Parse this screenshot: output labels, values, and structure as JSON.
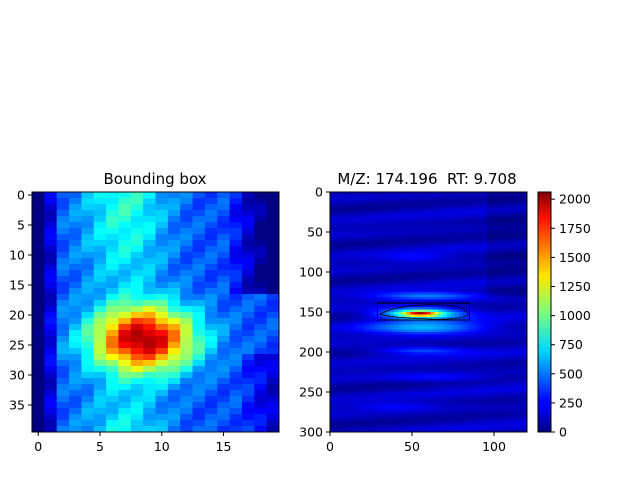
{
  "chart_data": [
    {
      "type": "heatmap",
      "title": "Bounding box",
      "colormap": "jet",
      "xlim": [
        -0.5,
        19.5
      ],
      "ylim": [
        39.5,
        -0.5
      ],
      "x_ticks": [
        "0",
        "5",
        "10",
        "15"
      ],
      "y_ticks": [
        "0",
        "5",
        "10",
        "15",
        "20",
        "25",
        "30",
        "35"
      ],
      "peak": {
        "x": 8.5,
        "y": 24
      },
      "colorbar": false
    },
    {
      "type": "heatmap",
      "title": "M/Z: 174.196  RT: 9.708",
      "colormap": "jet",
      "xlim": [
        0,
        120
      ],
      "ylim": [
        300,
        0
      ],
      "x_ticks": [
        "0",
        "50",
        "100"
      ],
      "y_ticks": [
        "0",
        "50",
        "100",
        "150",
        "200",
        "250",
        "300"
      ],
      "peak": {
        "x": 55,
        "y": 152,
        "value": 2050
      },
      "bounding_box": {
        "x": [
          29,
          85
        ],
        "y": [
          140,
          160
        ]
      },
      "colorbar": {
        "range": [
          0,
          2060
        ],
        "ticks": [
          "0",
          "250",
          "500",
          "750",
          "1000",
          "1250",
          "1500",
          "1750",
          "2000"
        ]
      }
    }
  ]
}
